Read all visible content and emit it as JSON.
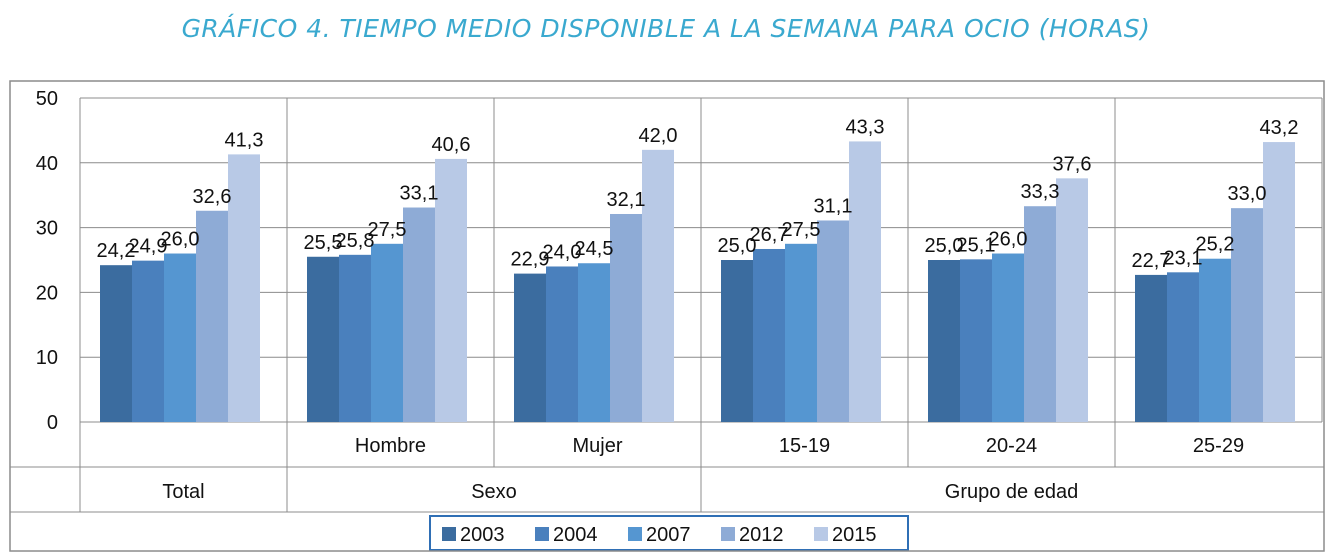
{
  "title": "GRÁFICO 4. TIEMPO MEDIO DISPONIBLE A LA SEMANA PARA OCIO (HORAS)",
  "chart_data": {
    "type": "bar",
    "title": "GRÁFICO 4. TIEMPO MEDIO DISPONIBLE A LA SEMANA PARA OCIO (HORAS)",
    "xlabel": "",
    "ylabel": "",
    "ylim": [
      0,
      50
    ],
    "yticks": [
      "0",
      "10",
      "20",
      "30",
      "40",
      "50"
    ],
    "grid": true,
    "legend_position": "bottom",
    "categories": [
      "Total",
      "Hombre",
      "Mujer",
      "15-19",
      "20-24",
      "25-29"
    ],
    "category_labels": [
      "Total",
      "Hombre",
      "Mujer",
      "15-19",
      "20-24",
      "25-29"
    ],
    "groups": [
      {
        "label": "",
        "span": [
          "Total"
        ]
      },
      {
        "label": "Sexo",
        "span": [
          "Hombre",
          "Mujer"
        ]
      },
      {
        "label": "Grupo de edad",
        "span": [
          "15-19",
          "20-24",
          "25-29"
        ]
      }
    ],
    "series": [
      {
        "name": "2003",
        "color": "#3b6c9f",
        "values": [
          24.2,
          25.5,
          22.9,
          25.0,
          25.0,
          22.7
        ],
        "labels": [
          "24,2",
          "25,5",
          "22,9",
          "25,0",
          "25,0",
          "22,7"
        ]
      },
      {
        "name": "2004",
        "color": "#4a80bd",
        "values": [
          24.9,
          25.8,
          24.0,
          26.7,
          25.1,
          23.1
        ],
        "labels": [
          "24,9",
          "25,8",
          "24,0",
          "26,7",
          "25,1",
          "23,1"
        ]
      },
      {
        "name": "2007",
        "color": "#5596d1",
        "values": [
          26.0,
          27.5,
          24.5,
          27.5,
          26.0,
          25.2
        ],
        "labels": [
          "26,0",
          "27,5",
          "24,5",
          "27,5",
          "26,0",
          "25,2"
        ]
      },
      {
        "name": "2012",
        "color": "#8eabd6",
        "values": [
          32.6,
          33.1,
          32.1,
          31.1,
          33.3,
          33.0
        ],
        "labels": [
          "32,6",
          "33,1",
          "32,1",
          "31,1",
          "33,3",
          "33,0"
        ]
      },
      {
        "name": "2015",
        "color": "#b8c9e6",
        "values": [
          41.3,
          40.6,
          42.0,
          43.3,
          37.6,
          43.2
        ],
        "labels": [
          "41,3",
          "40,6",
          "42,0",
          "43,3",
          "37,6",
          "43,2"
        ]
      }
    ]
  }
}
